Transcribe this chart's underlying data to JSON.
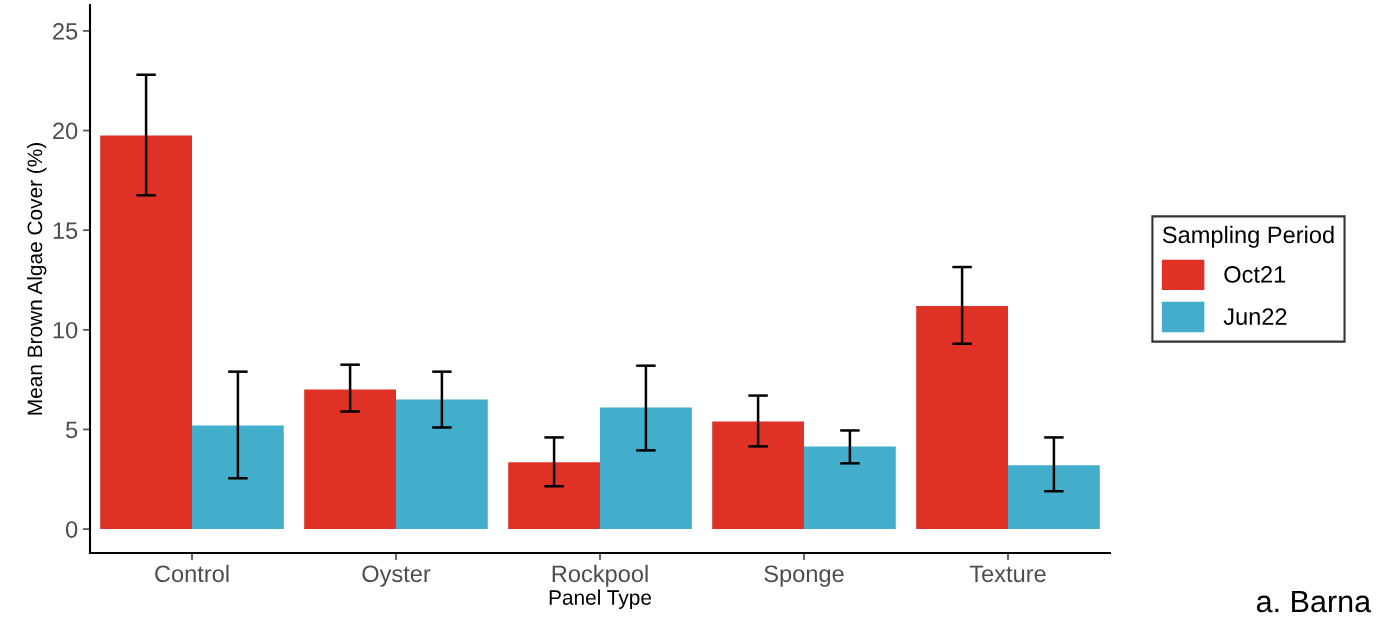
{
  "chart_data": {
    "type": "bar",
    "xlabel": "Panel Type",
    "ylabel": "Mean Brown Algae Cover (%)",
    "legend_title": "Sampling Period",
    "categories": [
      "Control",
      "Oyster",
      "Rockpool",
      "Sponge",
      "Texture"
    ],
    "series": [
      {
        "name": "Oct21",
        "color": "#e03127",
        "values": [
          19.75,
          7.0,
          3.35,
          5.4,
          11.2
        ],
        "errors": [
          [
            16.75,
            22.8
          ],
          [
            5.9,
            8.25
          ],
          [
            2.15,
            4.6
          ],
          [
            4.15,
            6.7
          ],
          [
            9.3,
            13.15
          ]
        ]
      },
      {
        "name": "Jun22",
        "color": "#42aecb",
        "values": [
          5.2,
          6.5,
          6.1,
          4.15,
          3.2
        ],
        "errors": [
          [
            2.55,
            7.9
          ],
          [
            5.1,
            7.9
          ],
          [
            3.95,
            8.2
          ],
          [
            3.3,
            4.95
          ],
          [
            1.9,
            4.6
          ]
        ]
      }
    ],
    "ylim": [
      -1.2,
      26.3
    ],
    "yticks": [
      0,
      5,
      10,
      15,
      20,
      25
    ],
    "grid": false,
    "legend": "right",
    "annotations": [
      "a. Barna"
    ]
  }
}
